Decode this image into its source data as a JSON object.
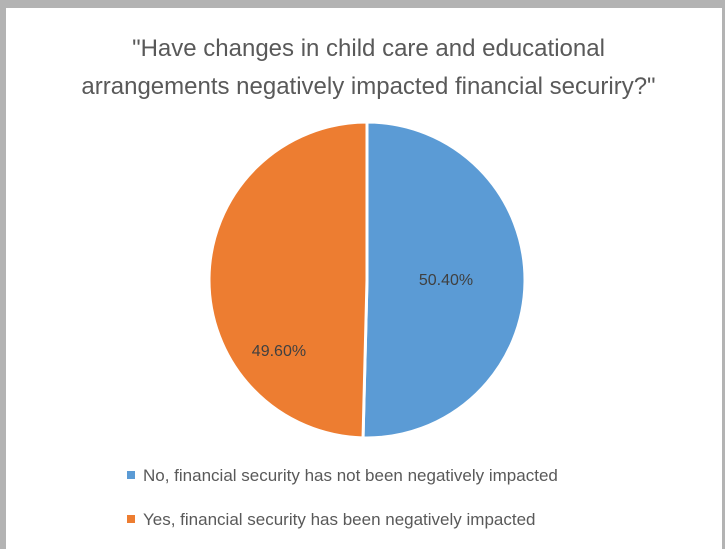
{
  "chart_data": {
    "type": "pie",
    "title": "\"Have changes in child care and educational arrangements negatively impacted financial securiry?\"",
    "title_lines": [
      "\"Have changes in child care and educational",
      "arrangements negatively impacted financial securiry?\""
    ],
    "slices": [
      {
        "name": "No, financial security has not been negatively impacted",
        "value": 50.4,
        "label": "50.40%",
        "color": "#5b9bd5"
      },
      {
        "name": "Yes, financial security has been negatively impacted",
        "value": 49.6,
        "label": "49.60%",
        "color": "#ed7d31"
      }
    ],
    "legend_position": "bottom",
    "start_angle_deg": 0,
    "direction": "clockwise"
  }
}
